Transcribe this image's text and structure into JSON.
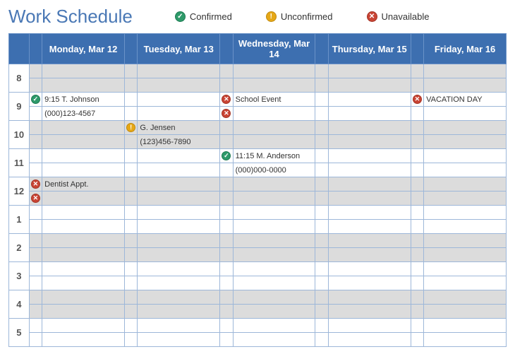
{
  "title": "Work Schedule",
  "legend": {
    "confirmed": {
      "label": "Confirmed",
      "bg": "#2e9a6a",
      "glyph": "✓"
    },
    "unconfirmed": {
      "label": "Unconfirmed",
      "bg": "#e6a817",
      "glyph": "!"
    },
    "unavailable": {
      "label": "Unavailable",
      "bg": "#c94434",
      "glyph": "✕"
    }
  },
  "colors": {
    "header_bg": "#3d6fb0",
    "header_border": "#6a92c8",
    "cell_border": "#9db7d9",
    "shaded_bg": "#dcdcdc",
    "plain_bg": "#ffffff",
    "title_color": "#4a78b5"
  },
  "days": [
    "Monday, Mar 12",
    "Tuesday, Mar 13",
    "Wednesday, Mar 14",
    "Thursday, Mar 15",
    "Friday, Mar 16"
  ],
  "hours": [
    "8",
    "9",
    "10",
    "11",
    "12",
    "1",
    "2",
    "3",
    "4",
    "5"
  ],
  "row_shading": [
    "shaded",
    "plain",
    "shaded",
    "plain",
    "shaded",
    "plain",
    "shaded",
    "plain",
    "shaded",
    "plain"
  ],
  "entries": {
    "h9_top": {
      "mon": {
        "status": "confirmed",
        "text": "9:15 T. Johnson"
      },
      "wed": {
        "status": "unavailable",
        "text": "School Event"
      },
      "fri": {
        "status": "unavailable",
        "text": "VACATION DAY"
      }
    },
    "h9_bot": {
      "mon": {
        "text": "(000)123-4567"
      },
      "wed": {
        "status": "unavailable"
      }
    },
    "h10_top": {
      "tue": {
        "status": "unconfirmed",
        "text": "G. Jensen"
      }
    },
    "h10_bot": {
      "tue": {
        "text": "(123)456-7890"
      }
    },
    "h11_top": {
      "wed": {
        "status": "confirmed",
        "text": "11:15 M. Anderson"
      }
    },
    "h11_bot": {
      "wed": {
        "text": "(000)000-0000"
      }
    },
    "h12_top": {
      "mon": {
        "status": "unavailable",
        "text": "Dentist Appt."
      }
    },
    "h12_bot": {
      "mon": {
        "status": "unavailable"
      }
    }
  }
}
